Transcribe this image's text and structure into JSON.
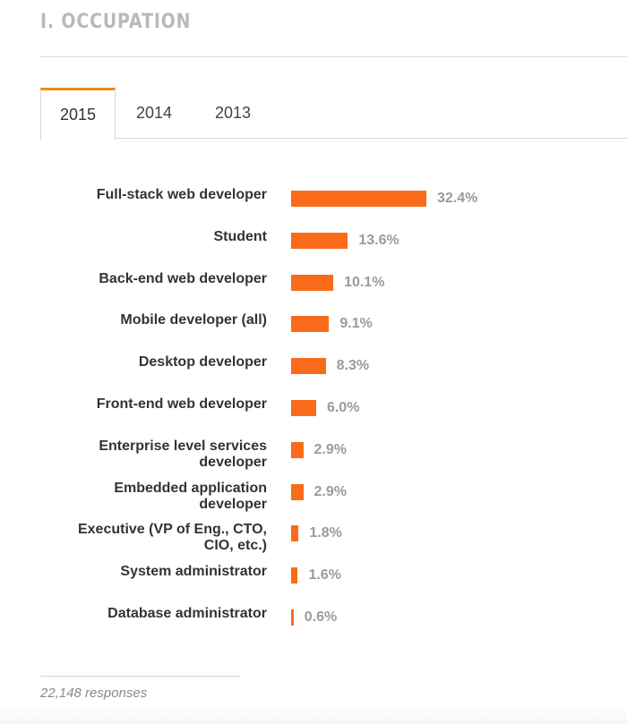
{
  "section": {
    "title": "I. OCCUPATION"
  },
  "tabs": [
    {
      "label": "2015",
      "active": true
    },
    {
      "label": "2014",
      "active": false
    },
    {
      "label": "2013",
      "active": false
    }
  ],
  "colors": {
    "bar": "#f96b1a",
    "tab_accent": "#f38a12",
    "value_text": "#9b9b9b",
    "label_text": "#333333"
  },
  "chart_data": {
    "type": "bar",
    "orientation": "horizontal",
    "categories": [
      "Full-stack web developer",
      "Student",
      "Back-end web developer",
      "Mobile developer (all)",
      "Desktop developer",
      "Front-end web developer",
      "Enterprise level services developer",
      "Embedded application developer",
      "Executive (VP of Eng., CTO, CIO, etc.)",
      "System administrator",
      "Database administrator"
    ],
    "values": [
      32.4,
      13.6,
      10.1,
      9.1,
      8.3,
      6.0,
      2.9,
      2.9,
      1.8,
      1.6,
      0.6
    ],
    "value_labels": [
      "32.4%",
      "13.6%",
      "10.1%",
      "9.1%",
      "8.3%",
      "6.0%",
      "2.9%",
      "2.9%",
      "1.8%",
      "1.6%",
      "0.6%"
    ],
    "unit": "%"
  },
  "footer": {
    "responses": "22,148 responses"
  }
}
